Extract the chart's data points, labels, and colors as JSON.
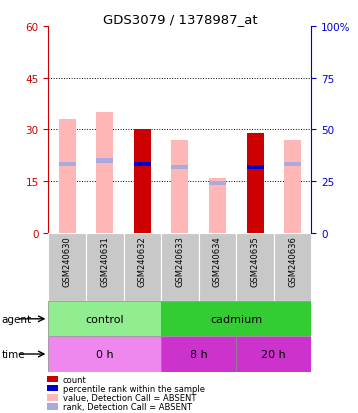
{
  "title": "GDS3079 / 1378987_at",
  "samples": [
    "GSM240630",
    "GSM240631",
    "GSM240632",
    "GSM240633",
    "GSM240634",
    "GSM240635",
    "GSM240636"
  ],
  "ylim_left": [
    0,
    60
  ],
  "ylim_right": [
    0,
    100
  ],
  "yticks_left": [
    0,
    15,
    30,
    45,
    60
  ],
  "yticks_right": [
    0,
    25,
    50,
    75,
    100
  ],
  "ytick_labels_left": [
    "0",
    "15",
    "30",
    "45",
    "60"
  ],
  "ytick_labels_right": [
    "0",
    "25",
    "50",
    "75",
    "100%"
  ],
  "grid_lines": [
    15,
    30,
    45
  ],
  "bars": [
    {
      "sample": "GSM240630",
      "pink_value": 33,
      "pink_rank": 20,
      "red_count": 0,
      "blue_rank": 0,
      "absent": true
    },
    {
      "sample": "GSM240631",
      "pink_value": 35,
      "pink_rank": 21,
      "red_count": 0,
      "blue_rank": 0,
      "absent": true
    },
    {
      "sample": "GSM240632",
      "pink_value": 0,
      "pink_rank": 0,
      "red_count": 30,
      "blue_rank": 20,
      "absent": false
    },
    {
      "sample": "GSM240633",
      "pink_value": 27,
      "pink_rank": 19,
      "red_count": 0,
      "blue_rank": 0,
      "absent": true
    },
    {
      "sample": "GSM240634",
      "pink_value": 16,
      "pink_rank": 14.5,
      "red_count": 0,
      "blue_rank": 0,
      "absent": true
    },
    {
      "sample": "GSM240635",
      "pink_value": 0,
      "pink_rank": 0,
      "red_count": 29,
      "blue_rank": 19,
      "absent": false
    },
    {
      "sample": "GSM240636",
      "pink_value": 27,
      "pink_rank": 20,
      "red_count": 0,
      "blue_rank": 0,
      "absent": true
    }
  ],
  "bar_width": 0.45,
  "color_red": "#cc0000",
  "color_blue": "#0000cc",
  "color_pink": "#ffb6b6",
  "color_lightblue": "#aaaadd",
  "color_left_axis": "#cc0000",
  "color_right_axis": "#0000cc",
  "bg_xtick": "#c8c8c8",
  "color_control": "#90ee90",
  "color_cadmium": "#33cc33",
  "color_0h": "#ee88ee",
  "color_8h": "#cc33cc",
  "color_20h": "#cc33cc",
  "legend_items": [
    {
      "color": "#cc0000",
      "label": "count"
    },
    {
      "color": "#0000cc",
      "label": "percentile rank within the sample"
    },
    {
      "color": "#ffb6b6",
      "label": "value, Detection Call = ABSENT"
    },
    {
      "color": "#aaaadd",
      "label": "rank, Detection Call = ABSENT"
    }
  ]
}
